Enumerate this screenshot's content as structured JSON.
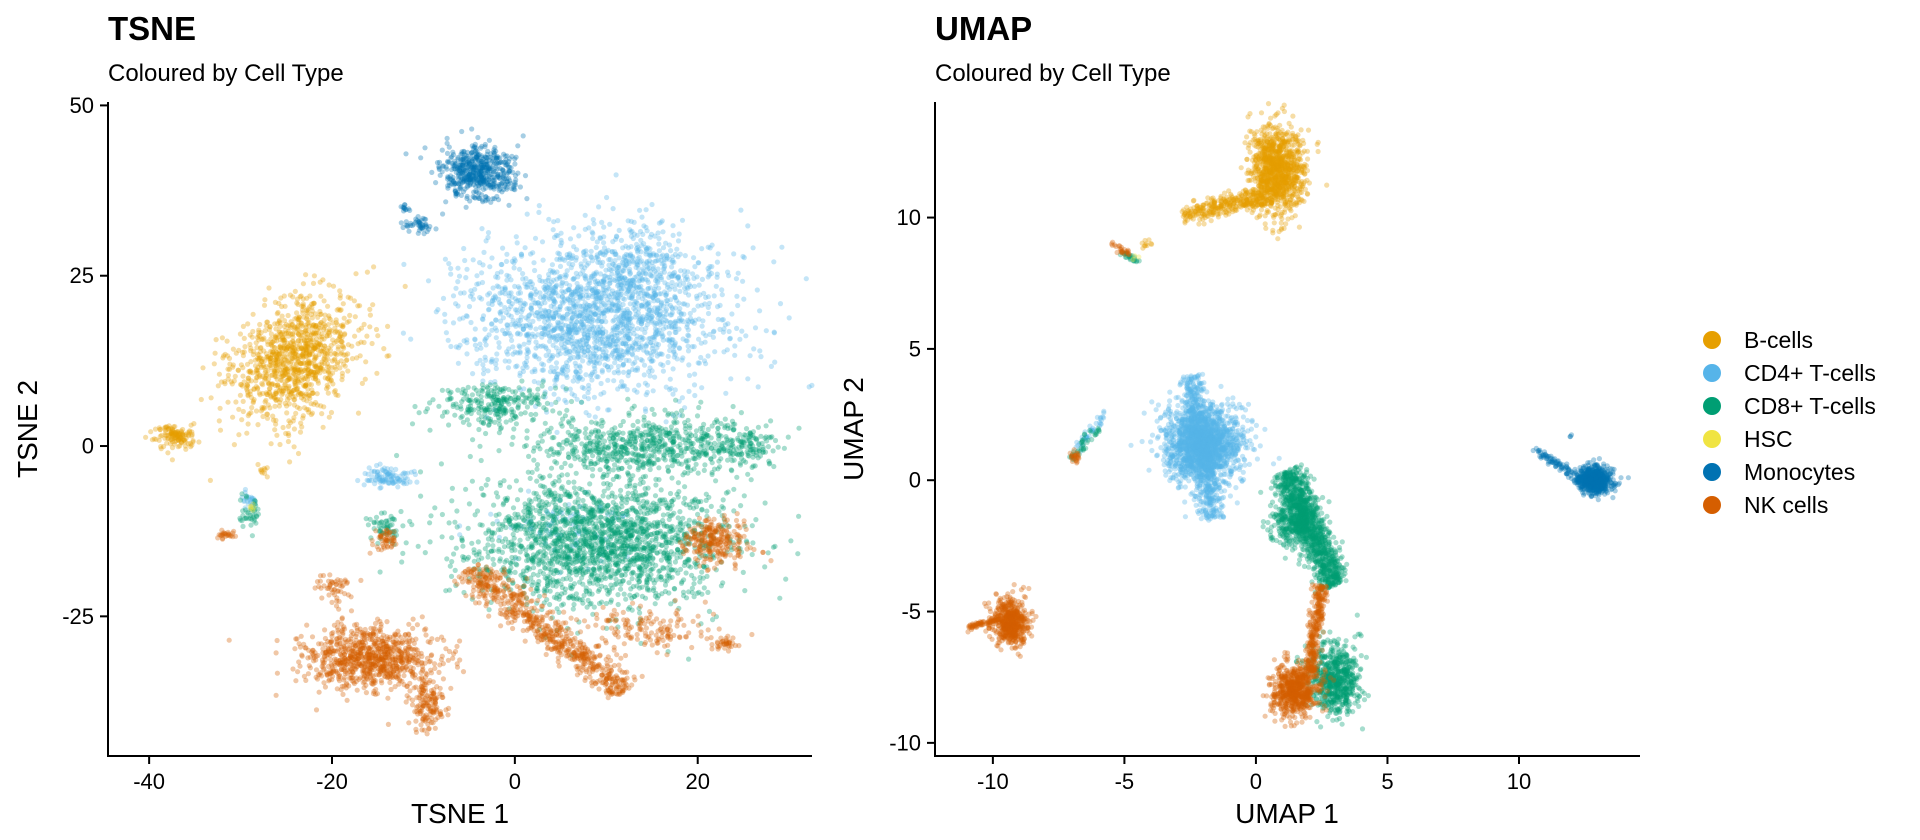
{
  "chart_data": [
    {
      "type": "scatter",
      "title": "TSNE",
      "subtitle": "Coloured by Cell Type",
      "xlabel": "TSNE 1",
      "ylabel": "TSNE 2",
      "xlim": [
        -44.5,
        32.5
      ],
      "ylim": [
        -45.5,
        50.5
      ],
      "xticks": [
        -40,
        -20,
        0,
        20
      ],
      "yticks": [
        -25,
        0,
        25,
        50
      ],
      "xtick_labels": [
        "-40",
        "-20",
        "0",
        "20"
      ],
      "ytick_labels": [
        "-25",
        "0",
        "25",
        "50"
      ],
      "grid": false,
      "point_opacity": 0.35,
      "clusters": [
        {
          "cell_type": "Monocytes",
          "n": 520,
          "shape": "ellipse",
          "center": [
            -4,
            40
          ],
          "spread": [
            3.6,
            3.6
          ],
          "angle": 0
        },
        {
          "cell_type": "Monocytes",
          "n": 45,
          "shape": "ellipse",
          "center": [
            -10.5,
            32.5
          ],
          "spread": [
            1.6,
            1.2
          ],
          "angle": 0
        },
        {
          "cell_type": "Monocytes",
          "n": 12,
          "shape": "ellipse",
          "center": [
            -12,
            35
          ],
          "spread": [
            0.6,
            0.6
          ],
          "angle": 0
        },
        {
          "cell_type": "B-cells",
          "n": 1050,
          "shape": "ellipse",
          "center": [
            -24,
            13
          ],
          "spread": [
            5.3,
            9
          ],
          "angle": -25
        },
        {
          "cell_type": "B-cells",
          "n": 130,
          "shape": "ellipse",
          "center": [
            -37,
            1.5
          ],
          "spread": [
            2.2,
            1.6
          ],
          "angle": 0
        },
        {
          "cell_type": "B-cells",
          "n": 10,
          "shape": "ellipse",
          "center": [
            -27.5,
            -3.5
          ],
          "spread": [
            0.4,
            0.8
          ],
          "angle": 0
        },
        {
          "cell_type": "CD4+ T-cells",
          "n": 1900,
          "shape": "ellipse",
          "center": [
            9,
            19
          ],
          "spread": [
            12.5,
            10
          ],
          "angle": 0
        },
        {
          "cell_type": "CD4+ T-cells",
          "n": 170,
          "shape": "ellipse",
          "center": [
            14,
            27
          ],
          "spread": [
            5,
            5
          ],
          "angle": 0
        },
        {
          "cell_type": "CD4+ T-cells",
          "n": 100,
          "shape": "ellipse",
          "center": [
            -14,
            -4.5
          ],
          "spread": [
            2.4,
            1.4
          ],
          "angle": 0
        },
        {
          "cell_type": "CD4+ T-cells",
          "n": 25,
          "shape": "ellipse",
          "center": [
            -29,
            -8
          ],
          "spread": [
            0.8,
            1.2
          ],
          "angle": 0
        },
        {
          "cell_type": "CD4+ T-cells",
          "n": 80,
          "shape": "ellipse",
          "center": [
            6,
            -12
          ],
          "spread": [
            7,
            5
          ],
          "angle": 0
        },
        {
          "cell_type": "CD8+ T-cells",
          "n": 1900,
          "shape": "ellipse",
          "center": [
            9,
            -14
          ],
          "spread": [
            13,
            8.5
          ],
          "angle": 0
        },
        {
          "cell_type": "CD8+ T-cells",
          "n": 650,
          "shape": "ellipse",
          "center": [
            13,
            0
          ],
          "spread": [
            11,
            4
          ],
          "angle": 0
        },
        {
          "cell_type": "CD8+ T-cells",
          "n": 260,
          "shape": "ellipse",
          "center": [
            -2,
            6
          ],
          "spread": [
            6,
            3
          ],
          "angle": 0
        },
        {
          "cell_type": "CD8+ T-cells",
          "n": 120,
          "shape": "ellipse",
          "center": [
            25,
            0
          ],
          "spread": [
            3,
            2.5
          ],
          "angle": 0
        },
        {
          "cell_type": "CD8+ T-cells",
          "n": 55,
          "shape": "ellipse",
          "center": [
            -14,
            -12
          ],
          "spread": [
            1.6,
            2.2
          ],
          "angle": 0
        },
        {
          "cell_type": "CD8+ T-cells",
          "n": 40,
          "shape": "ellipse",
          "center": [
            -29,
            -10
          ],
          "spread": [
            1,
            2.5
          ],
          "angle": 0
        },
        {
          "cell_type": "NK cells",
          "n": 850,
          "shape": "ellipse",
          "center": [
            -16,
            -31
          ],
          "spread": [
            6.5,
            4
          ],
          "angle": 0
        },
        {
          "cell_type": "NK cells",
          "n": 140,
          "shape": "ellipse",
          "center": [
            -9.5,
            -38
          ],
          "spread": [
            1.6,
            3.5
          ],
          "angle": 0
        },
        {
          "cell_type": "NK cells",
          "n": 50,
          "shape": "ellipse",
          "center": [
            -19.5,
            -21
          ],
          "spread": [
            1.8,
            1.6
          ],
          "angle": 0
        },
        {
          "cell_type": "NK cells",
          "n": 650,
          "shape": "line",
          "from": [
            -5,
            -18
          ],
          "to": [
            12,
            -36
          ],
          "width": 2.3
        },
        {
          "cell_type": "NK cells",
          "n": 250,
          "shape": "ellipse",
          "center": [
            22,
            -14
          ],
          "spread": [
            3.2,
            3
          ],
          "angle": 0
        },
        {
          "cell_type": "NK cells",
          "n": 140,
          "shape": "ellipse",
          "center": [
            15,
            -27
          ],
          "spread": [
            6,
            3
          ],
          "angle": 0
        },
        {
          "cell_type": "NK cells",
          "n": 50,
          "shape": "ellipse",
          "center": [
            -14,
            -14
          ],
          "spread": [
            1.2,
            1.6
          ],
          "angle": 0
        },
        {
          "cell_type": "NK cells",
          "n": 25,
          "shape": "ellipse",
          "center": [
            -31.5,
            -13
          ],
          "spread": [
            0.8,
            0.5
          ],
          "angle": 0
        },
        {
          "cell_type": "NK cells",
          "n": 35,
          "shape": "ellipse",
          "center": [
            23,
            -29
          ],
          "spread": [
            1.2,
            1.2
          ],
          "angle": 0
        },
        {
          "cell_type": "HSC",
          "n": 6,
          "shape": "ellipse",
          "center": [
            -28.5,
            -9
          ],
          "spread": [
            0.5,
            0.7
          ],
          "angle": 0
        }
      ]
    },
    {
      "type": "scatter",
      "title": "UMAP",
      "subtitle": "Coloured by Cell Type",
      "xlabel": "UMAP 1",
      "ylabel": "UMAP 2",
      "xlim": [
        -12.2,
        14.6
      ],
      "ylim": [
        -10.5,
        14.4
      ],
      "xticks": [
        -10,
        -5,
        0,
        5,
        10
      ],
      "yticks": [
        -10,
        -5,
        0,
        5,
        10
      ],
      "xtick_labels": [
        "-10",
        "-5",
        "0",
        "5",
        "10"
      ],
      "ytick_labels": [
        "-10",
        "-5",
        "0",
        "5",
        "10"
      ],
      "grid": false,
      "point_opacity": 0.35,
      "clusters": [
        {
          "cell_type": "B-cells",
          "n": 1100,
          "shape": "ellipse",
          "center": [
            0.8,
            11.8
          ],
          "spread": [
            0.9,
            1.5
          ],
          "angle": 0
        },
        {
          "cell_type": "B-cells",
          "n": 320,
          "shape": "line",
          "from": [
            -2.8,
            10.1
          ],
          "to": [
            0.4,
            10.8
          ],
          "width": 0.38
        },
        {
          "cell_type": "B-cells",
          "n": 10,
          "shape": "ellipse",
          "center": [
            -4.2,
            9.0
          ],
          "spread": [
            0.2,
            0.15
          ],
          "angle": 0
        },
        {
          "cell_type": "CD4+ T-cells",
          "n": 1700,
          "shape": "ellipse",
          "center": [
            -2.0,
            1.4
          ],
          "spread": [
            1.3,
            1.3
          ],
          "angle": 0
        },
        {
          "cell_type": "CD4+ T-cells",
          "n": 550,
          "shape": "line",
          "from": [
            -2.5,
            4.0
          ],
          "to": [
            -1.6,
            -1.5
          ],
          "width": 0.5
        },
        {
          "cell_type": "CD4+ T-cells",
          "n": 40,
          "shape": "line",
          "from": [
            -6.8,
            1.2
          ],
          "to": [
            -5.6,
            2.7
          ],
          "width": 0.2
        },
        {
          "cell_type": "CD8+ T-cells",
          "n": 1000,
          "shape": "line",
          "from": [
            1.2,
            0.4
          ],
          "to": [
            3.0,
            -4.0
          ],
          "width": 0.6
        },
        {
          "cell_type": "CD8+ T-cells",
          "n": 400,
          "shape": "ellipse",
          "center": [
            1.5,
            -1.5
          ],
          "spread": [
            0.8,
            1.0
          ],
          "angle": 0
        },
        {
          "cell_type": "CD8+ T-cells",
          "n": 650,
          "shape": "ellipse",
          "center": [
            3.0,
            -7.6
          ],
          "spread": [
            0.9,
            1.2
          ],
          "angle": 0
        },
        {
          "cell_type": "CD8+ T-cells",
          "n": 40,
          "shape": "line",
          "from": [
            -7.0,
            0.8
          ],
          "to": [
            -6.0,
            2.0
          ],
          "width": 0.2
        },
        {
          "cell_type": "CD8+ T-cells",
          "n": 25,
          "shape": "line",
          "from": [
            -5.2,
            8.7
          ],
          "to": [
            -4.4,
            8.3
          ],
          "width": 0.1
        },
        {
          "cell_type": "NK cells",
          "n": 650,
          "shape": "ellipse",
          "center": [
            1.5,
            -8.0
          ],
          "spread": [
            0.8,
            0.9
          ],
          "angle": 0
        },
        {
          "cell_type": "NK cells",
          "n": 300,
          "shape": "line",
          "from": [
            2.5,
            -4.0
          ],
          "to": [
            2.0,
            -7.5
          ],
          "width": 0.25
        },
        {
          "cell_type": "NK cells",
          "n": 550,
          "shape": "ellipse",
          "center": [
            -9.3,
            -5.4
          ],
          "spread": [
            0.6,
            0.8
          ],
          "angle": 0
        },
        {
          "cell_type": "NK cells",
          "n": 60,
          "shape": "line",
          "from": [
            -11.0,
            -5.6
          ],
          "to": [
            -9.8,
            -5.3
          ],
          "width": 0.12
        },
        {
          "cell_type": "NK cells",
          "n": 25,
          "shape": "ellipse",
          "center": [
            -6.9,
            0.9
          ],
          "spread": [
            0.2,
            0.3
          ],
          "angle": 0
        },
        {
          "cell_type": "NK cells",
          "n": 25,
          "shape": "line",
          "from": [
            -5.5,
            9.0
          ],
          "to": [
            -4.8,
            8.6
          ],
          "width": 0.1
        },
        {
          "cell_type": "Monocytes",
          "n": 700,
          "shape": "ellipse",
          "center": [
            12.9,
            0.0
          ],
          "spread": [
            0.6,
            0.45
          ],
          "angle": 0
        },
        {
          "cell_type": "Monocytes",
          "n": 80,
          "shape": "line",
          "from": [
            10.5,
            1.2
          ],
          "to": [
            12.3,
            0.1
          ],
          "width": 0.15
        },
        {
          "cell_type": "Monocytes",
          "n": 3,
          "shape": "ellipse",
          "center": [
            12.0,
            1.7
          ],
          "spread": [
            0.05,
            0.05
          ],
          "angle": 0
        },
        {
          "cell_type": "HSC",
          "n": 3,
          "shape": "ellipse",
          "center": [
            -4.6,
            8.5
          ],
          "spread": [
            0.1,
            0.1
          ],
          "angle": 0
        }
      ]
    }
  ],
  "legend": {
    "placement": "right",
    "items": [
      {
        "label": "B-cells",
        "color": "#E69F00"
      },
      {
        "label": "CD4+ T-cells",
        "color": "#56B4E9"
      },
      {
        "label": "CD8+ T-cells",
        "color": "#009E73"
      },
      {
        "label": "HSC",
        "color": "#F0E442"
      },
      {
        "label": "Monocytes",
        "color": "#0072B2"
      },
      {
        "label": "NK cells",
        "color": "#D55E00"
      }
    ]
  }
}
